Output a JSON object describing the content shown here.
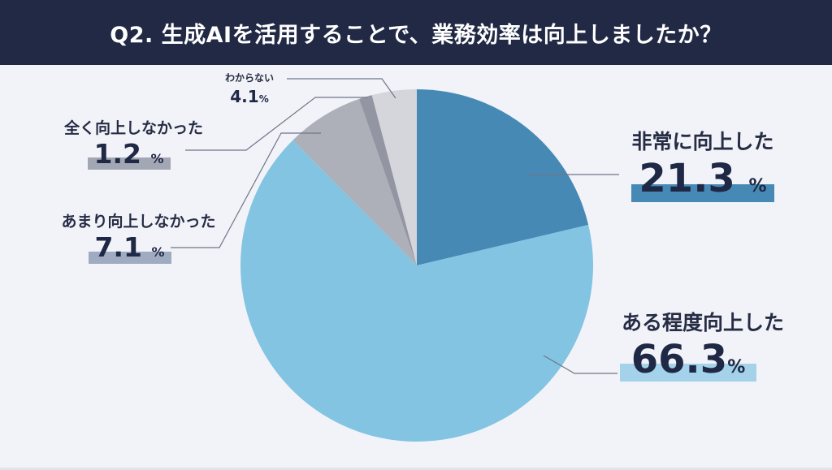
{
  "header": {
    "title": "Q2. 生成AIを活用することで、業務効率は向上しましたか？"
  },
  "chart_data": {
    "type": "pie",
    "title": "Q2. 生成AIを活用することで、業務効率は向上しましたか？",
    "start_angle_deg": 0,
    "direction": "clockwise",
    "slices": [
      {
        "label": "非常に向上した",
        "value": 21.3,
        "display": "21.3",
        "unit": "%",
        "color": "#4789b5"
      },
      {
        "label": "ある程度向上した",
        "value": 66.3,
        "display": "66.3",
        "unit": "%",
        "color": "#82c4e2"
      },
      {
        "label": "あまり向上しなかった",
        "value": 7.1,
        "display": "7.1",
        "unit": "%",
        "color": "#adb0b8"
      },
      {
        "label": "全く向上しなかった",
        "value": 1.2,
        "display": "1.2",
        "unit": "%",
        "color": "#9396a2"
      },
      {
        "label": "わからない",
        "value": 4.1,
        "display": "4.1",
        "unit": "%",
        "color": "#d5d6dc"
      }
    ],
    "label_bar_colors": {
      "非常に向上した": "#4789b5",
      "ある程度向上した": "#a3d2ea",
      "あまり向上しなかった": "#9eabc1",
      "全く向上しなかった": "#a3a7b4",
      "わからない": "none"
    },
    "legend": "none (callout labels)"
  },
  "labels": {
    "very_improved": {
      "name": "非常に向上した",
      "value": "21.3",
      "unit": "%"
    },
    "somewhat_improved": {
      "name": "ある程度向上した",
      "value": "66.3",
      "unit": "%"
    },
    "not_much": {
      "name": "あまり向上しなかった",
      "value": "7.1",
      "unit": "%"
    },
    "not_at_all": {
      "name": "全く向上しなかった",
      "value": "1.2",
      "unit": "%"
    },
    "unknown": {
      "name": "わからない",
      "value": "4.1",
      "unit": "%"
    }
  }
}
